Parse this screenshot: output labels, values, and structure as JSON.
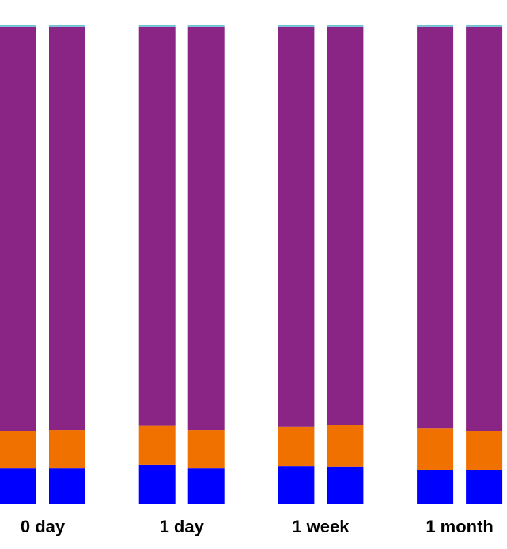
{
  "chart_data": {
    "type": "bar",
    "stacked": true,
    "categories": [
      "0 day",
      null,
      "1 day",
      null,
      "1 week",
      null,
      "1 month",
      null
    ],
    "series": [
      {
        "color": "#0000ff",
        "values": [
          7.4,
          7.4,
          8.1,
          7.4,
          7.9,
          7.8,
          7.1,
          7.1
        ]
      },
      {
        "color": "#f07000",
        "values": [
          7.9,
          8.1,
          8.3,
          8.1,
          8.3,
          8.7,
          8.7,
          8.1
        ]
      },
      {
        "color": "#8b2585",
        "values": [
          84.4,
          84.2,
          83.3,
          84.2,
          83.5,
          83.2,
          83.9,
          84.5
        ]
      },
      {
        "color": "#6fc3d8",
        "values": [
          0.3,
          0.3,
          0.3,
          0.3,
          0.3,
          0.3,
          0.3,
          0.3
        ]
      }
    ],
    "ylim": [
      0,
      100
    ]
  }
}
